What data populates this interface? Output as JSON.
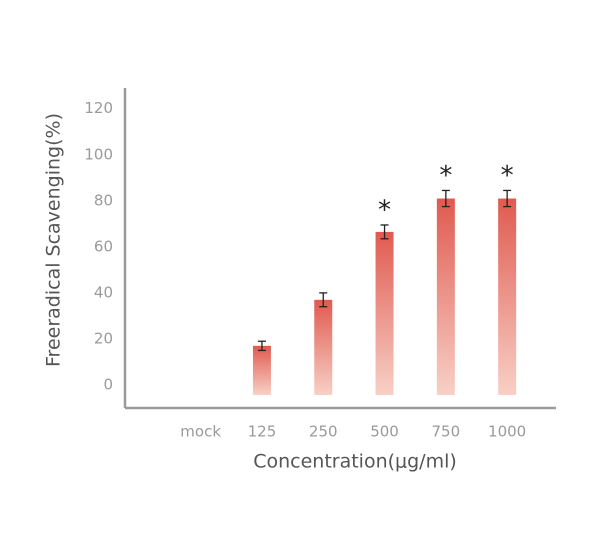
{
  "chart_data": {
    "type": "bar",
    "x_label": "Concentration(μg/ml)",
    "y_label": "Freeradical Scavenging(%)",
    "categories": [
      "mock",
      "125",
      "250",
      "500",
      "750",
      "1000"
    ],
    "values": [
      null,
      17,
      37,
      66.5,
      81,
      81
    ],
    "errors": [
      null,
      2,
      3,
      3,
      3.5,
      3.5
    ],
    "significance": [
      null,
      null,
      null,
      "*",
      "*",
      "*"
    ],
    "color": "#e05a50",
    "ylim": [
      -10,
      129
    ],
    "yticks": [
      0,
      20,
      40,
      60,
      80,
      100,
      120
    ],
    "grid": false
  }
}
